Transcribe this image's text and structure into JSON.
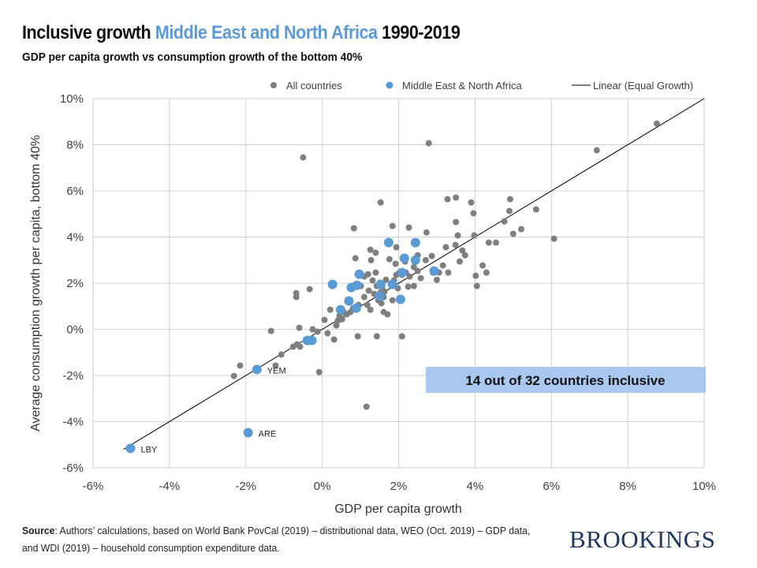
{
  "header": {
    "title_part1": "Inclusive growth ",
    "title_highlight": "Middle East and North Africa",
    "title_part2": " 1990-2019",
    "subtitle": "GDP per capita growth vs consumption growth of the bottom 40%"
  },
  "footer": {
    "source_label": "Source",
    "source_text": ": Authors’ calculations, based on World Bank PovCal (2019) – distributional data, WEO (Oct. 2019) – GDP data, and WDI (2019) – household consumption expenditure data.",
    "logo": "BROOKINGS"
  },
  "chart_data": {
    "type": "scatter",
    "xlabel": "GDP per capita growth",
    "ylabel": "Average consumption growth per capita, bottom 40%",
    "xlim": [
      -6,
      10
    ],
    "ylim": [
      -6,
      10
    ],
    "x_ticks": [
      "-6%",
      "-4%",
      "-2%",
      "0%",
      "2%",
      "4%",
      "6%",
      "8%",
      "10%"
    ],
    "y_ticks": [
      "-6%",
      "-4%",
      "-2%",
      "0%",
      "2%",
      "4%",
      "6%",
      "8%",
      "10%"
    ],
    "grid": true,
    "legend_position": "top",
    "legend": [
      "All countries",
      "Middle East & North Africa",
      "Linear (Equal Growth)"
    ],
    "annotation": "14 out of 32 countries inclusive",
    "colors": {
      "all": "#7f7f7f",
      "mena": "#5b9bd5",
      "line": "#000000",
      "annotation_bg": "#a9c8f0",
      "title_highlight": "#5b9bd5"
    },
    "reference_line": {
      "name": "Linear (Equal Growth)",
      "x": [
        -5.2,
        10
      ],
      "y": [
        -5.2,
        10
      ]
    },
    "series": [
      {
        "name": "All countries",
        "points": [
          [
            8.76,
            8.92
          ],
          [
            7.19,
            7.76
          ],
          [
            6.07,
            3.93
          ],
          [
            5.6,
            5.2
          ],
          [
            5.21,
            4.34
          ],
          [
            5.0,
            4.14
          ],
          [
            4.92,
            5.64
          ],
          [
            4.9,
            5.13
          ],
          [
            4.77,
            4.68
          ],
          [
            4.55,
            3.76
          ],
          [
            4.36,
            3.76
          ],
          [
            4.3,
            2.46
          ],
          [
            4.2,
            2.77
          ],
          [
            4.05,
            1.88
          ],
          [
            4.02,
            2.32
          ],
          [
            3.98,
            4.07
          ],
          [
            3.96,
            5.03
          ],
          [
            3.9,
            5.5
          ],
          [
            3.74,
            3.21
          ],
          [
            3.67,
            3.42
          ],
          [
            3.6,
            2.94
          ],
          [
            3.5,
            4.65
          ],
          [
            3.5,
            5.71
          ],
          [
            3.55,
            4.07
          ],
          [
            3.49,
            3.66
          ],
          [
            3.28,
            5.64
          ],
          [
            3.24,
            3.56
          ],
          [
            3.3,
            2.46
          ],
          [
            3.16,
            2.77
          ],
          [
            3.06,
            2.46
          ],
          [
            3.0,
            2.15
          ],
          [
            2.9,
            2.46
          ],
          [
            2.87,
            3.18
          ],
          [
            2.79,
            8.07
          ],
          [
            2.73,
            4.2
          ],
          [
            2.71,
            3.0
          ],
          [
            2.58,
            2.22
          ],
          [
            2.5,
            3.21
          ],
          [
            2.4,
            2.7
          ],
          [
            2.27,
            4.41
          ],
          [
            2.17,
            2.94
          ],
          [
            2.09,
            2.36
          ],
          [
            2.09,
            -0.3
          ],
          [
            1.98,
            1.78
          ],
          [
            1.84,
            4.48
          ],
          [
            1.76,
            3.04
          ],
          [
            1.67,
            2.15
          ],
          [
            1.63,
            1.64
          ],
          [
            1.55,
            1.13
          ],
          [
            1.43,
            -0.3
          ],
          [
            1.53,
            5.5
          ],
          [
            1.4,
            3.32
          ],
          [
            1.28,
            3.0
          ],
          [
            1.26,
            3.45
          ],
          [
            1.2,
            2.39
          ],
          [
            1.1,
            2.29
          ],
          [
            1.01,
            1.88
          ],
          [
            0.93,
            -0.3
          ],
          [
            0.87,
            3.08
          ],
          [
            0.83,
            4.38
          ],
          [
            0.79,
            1.88
          ],
          [
            0.72,
            1.26
          ],
          [
            0.56,
            0.75
          ],
          [
            0.45,
            0.58
          ],
          [
            0.37,
            0.17
          ],
          [
            0.31,
            -0.44
          ],
          [
            0.21,
            0.85
          ],
          [
            0.14,
            -0.17
          ],
          [
            0.06,
            0.41
          ],
          [
            -0.08,
            -1.85
          ],
          [
            -0.12,
            -0.1
          ],
          [
            -0.25,
            0
          ],
          [
            -0.33,
            1.74
          ],
          [
            -0.5,
            7.45
          ],
          [
            -0.58,
            -0.75
          ],
          [
            -0.66,
            -0.65
          ],
          [
            -0.6,
            0.07
          ],
          [
            -0.68,
            1.57
          ],
          [
            -0.68,
            1.4
          ],
          [
            -0.76,
            -0.75
          ],
          [
            -1.07,
            -1.09
          ],
          [
            -1.34,
            -0.07
          ],
          [
            -1.22,
            -1.57
          ],
          [
            -2.15,
            -1.57
          ],
          [
            -2.31,
            -2.02
          ],
          [
            1.16,
            -3.35
          ],
          [
            1.32,
            2.12
          ],
          [
            1.4,
            2.46
          ],
          [
            1.51,
            2.02
          ],
          [
            1.57,
            1.85
          ],
          [
            1.61,
            1.4
          ],
          [
            1.47,
            1.26
          ],
          [
            1.36,
            1.54
          ],
          [
            1.22,
            1.68
          ],
          [
            1.1,
            1.4
          ],
          [
            0.95,
            1.06
          ],
          [
            0.81,
            0.92
          ],
          [
            0.74,
            0.75
          ],
          [
            0.64,
            0.65
          ],
          [
            0.52,
            0.44
          ],
          [
            0.41,
            0.38
          ],
          [
            1.18,
            1.06
          ],
          [
            1.26,
            0.85
          ],
          [
            1.88,
            2.12
          ],
          [
            1.94,
            2.36
          ],
          [
            2.02,
            2.46
          ],
          [
            2.19,
            2.46
          ],
          [
            2.29,
            2.29
          ],
          [
            2.4,
            1.88
          ],
          [
            2.5,
            2.53
          ],
          [
            2.25,
            1.85
          ],
          [
            1.84,
            1.26
          ],
          [
            1.71,
            0.65
          ],
          [
            1.61,
            0.75
          ],
          [
            1.53,
            1.61
          ],
          [
            1.43,
            1.88
          ],
          [
            0.66,
            1.2
          ],
          [
            1.92,
            2.84
          ],
          [
            1.94,
            3.56
          ]
        ]
      },
      {
        "name": "Middle East & North Africa",
        "points": [
          {
            "x": -5.02,
            "y": -5.16,
            "label": "LBY"
          },
          {
            "x": -1.94,
            "y": -4.48,
            "label": "ARE"
          },
          {
            "x": -1.71,
            "y": -1.74,
            "label": "YEM"
          },
          {
            "x": -0.39,
            "y": -0.48
          },
          {
            "x": -0.27,
            "y": -0.48
          },
          {
            "x": 0.27,
            "y": 1.95
          },
          {
            "x": 0.48,
            "y": 0.85
          },
          {
            "x": 0.7,
            "y": 1.23
          },
          {
            "x": 0.76,
            "y": 1.81
          },
          {
            "x": 0.91,
            "y": 1.91
          },
          {
            "x": 0.97,
            "y": 2.39
          },
          {
            "x": 0.89,
            "y": 0.92
          },
          {
            "x": 1.74,
            "y": 3.76
          },
          {
            "x": 2.44,
            "y": 3.76
          },
          {
            "x": 2.15,
            "y": 3.08
          },
          {
            "x": 2.44,
            "y": 3.0
          },
          {
            "x": 2.09,
            "y": 2.46
          },
          {
            "x": 1.84,
            "y": 1.95
          },
          {
            "x": 2.05,
            "y": 1.3
          },
          {
            "x": 2.93,
            "y": 2.53
          },
          {
            "x": 1.51,
            "y": 1.44
          },
          {
            "x": 1.53,
            "y": 1.95
          }
        ]
      }
    ]
  }
}
